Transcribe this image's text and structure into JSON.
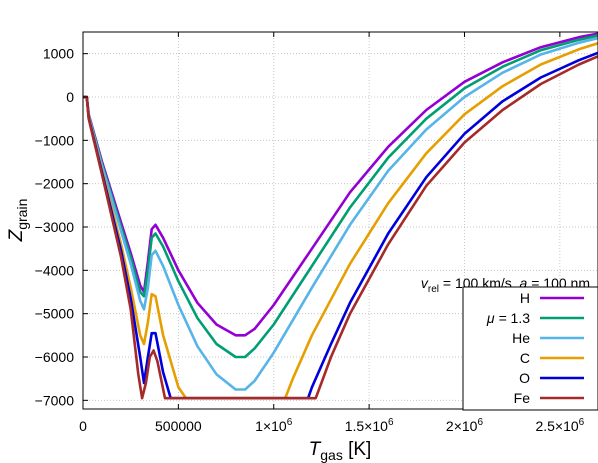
{
  "chart_data": {
    "type": "line",
    "title": "",
    "xlabel": {
      "main": "T",
      "sub": "gas",
      "unit": " [K]"
    },
    "ylabel": {
      "main": "Z",
      "sub": "grain"
    },
    "xlim": [
      0,
      2700000
    ],
    "ylim": [
      -7200,
      1500
    ],
    "grid": true,
    "x_ticks": [
      {
        "value": 0,
        "label": "0"
      },
      {
        "value": 500000,
        "label": "500000"
      },
      {
        "value": 1000000,
        "label": "1×10",
        "exp": "6"
      },
      {
        "value": 1500000,
        "label": "1.5×10",
        "exp": "6"
      },
      {
        "value": 2000000,
        "label": "2×10",
        "exp": "6"
      },
      {
        "value": 2500000,
        "label": "2.5×10",
        "exp": "6"
      }
    ],
    "y_ticks": [
      {
        "value": 1000,
        "label": "1000"
      },
      {
        "value": 0,
        "label": "0"
      },
      {
        "value": -1000,
        "label": "−1000"
      },
      {
        "value": -2000,
        "label": "−2000"
      },
      {
        "value": -3000,
        "label": "−3000"
      },
      {
        "value": -4000,
        "label": "−4000"
      },
      {
        "value": -5000,
        "label": "−5000"
      },
      {
        "value": -6000,
        "label": "−6000"
      },
      {
        "value": -7000,
        "label": "−7000"
      }
    ],
    "annotation": {
      "v": "v",
      "v_sub": "rel",
      "rest": " = 100 km/s, ",
      "a": "a",
      "a_rest": " = 100 nm"
    },
    "legend_position": "bottom-right",
    "series": [
      {
        "name": "H",
        "mu_prefix": "",
        "color": "#9400d3",
        "points": [
          [
            0,
            0
          ],
          [
            20000,
            0
          ],
          [
            30000,
            -400
          ],
          [
            100000,
            -1500
          ],
          [
            200000,
            -2900
          ],
          [
            250000,
            -3600
          ],
          [
            300000,
            -4350
          ],
          [
            320000,
            -4500
          ],
          [
            340000,
            -3800
          ],
          [
            360000,
            -3050
          ],
          [
            380000,
            -2950
          ],
          [
            420000,
            -3250
          ],
          [
            500000,
            -4000
          ],
          [
            600000,
            -4750
          ],
          [
            700000,
            -5250
          ],
          [
            800000,
            -5500
          ],
          [
            850000,
            -5500
          ],
          [
            900000,
            -5350
          ],
          [
            1000000,
            -4800
          ],
          [
            1200000,
            -3500
          ],
          [
            1400000,
            -2200
          ],
          [
            1600000,
            -1150
          ],
          [
            1800000,
            -300
          ],
          [
            2000000,
            350
          ],
          [
            2200000,
            800
          ],
          [
            2400000,
            1150
          ],
          [
            2600000,
            1380
          ],
          [
            2700000,
            1460
          ]
        ]
      },
      {
        "name": "1.3",
        "mu_prefix": "μ",
        "color": "#009e73",
        "points": [
          [
            0,
            0
          ],
          [
            20000,
            0
          ],
          [
            30000,
            -420
          ],
          [
            100000,
            -1550
          ],
          [
            200000,
            -3000
          ],
          [
            250000,
            -3700
          ],
          [
            300000,
            -4500
          ],
          [
            320000,
            -4600
          ],
          [
            340000,
            -4000
          ],
          [
            360000,
            -3250
          ],
          [
            380000,
            -3150
          ],
          [
            420000,
            -3450
          ],
          [
            500000,
            -4250
          ],
          [
            600000,
            -5100
          ],
          [
            700000,
            -5700
          ],
          [
            800000,
            -6000
          ],
          [
            850000,
            -6000
          ],
          [
            900000,
            -5800
          ],
          [
            1000000,
            -5250
          ],
          [
            1200000,
            -3900
          ],
          [
            1400000,
            -2550
          ],
          [
            1600000,
            -1400
          ],
          [
            1800000,
            -500
          ],
          [
            2000000,
            200
          ],
          [
            2200000,
            700
          ],
          [
            2400000,
            1080
          ],
          [
            2600000,
            1320
          ],
          [
            2700000,
            1420
          ]
        ]
      },
      {
        "name": "He",
        "mu_prefix": "",
        "color": "#56b4e9",
        "points": [
          [
            0,
            0
          ],
          [
            20000,
            0
          ],
          [
            30000,
            -440
          ],
          [
            100000,
            -1600
          ],
          [
            200000,
            -3100
          ],
          [
            250000,
            -3850
          ],
          [
            300000,
            -4700
          ],
          [
            320000,
            -4900
          ],
          [
            340000,
            -4400
          ],
          [
            360000,
            -3650
          ],
          [
            380000,
            -3550
          ],
          [
            420000,
            -3900
          ],
          [
            500000,
            -4800
          ],
          [
            600000,
            -5750
          ],
          [
            700000,
            -6400
          ],
          [
            800000,
            -6750
          ],
          [
            850000,
            -6750
          ],
          [
            900000,
            -6550
          ],
          [
            1000000,
            -5900
          ],
          [
            1200000,
            -4400
          ],
          [
            1400000,
            -2950
          ],
          [
            1600000,
            -1700
          ],
          [
            1800000,
            -750
          ],
          [
            2000000,
            0
          ],
          [
            2200000,
            560
          ],
          [
            2400000,
            980
          ],
          [
            2600000,
            1250
          ],
          [
            2700000,
            1360
          ]
        ]
      },
      {
        "name": "C",
        "mu_prefix": "",
        "color": "#e69f00",
        "points": [
          [
            0,
            0
          ],
          [
            20000,
            0
          ],
          [
            30000,
            -460
          ],
          [
            100000,
            -1700
          ],
          [
            200000,
            -3400
          ],
          [
            250000,
            -4400
          ],
          [
            300000,
            -5500
          ],
          [
            320000,
            -5700
          ],
          [
            340000,
            -5200
          ],
          [
            360000,
            -4550
          ],
          [
            380000,
            -4600
          ],
          [
            420000,
            -5500
          ],
          [
            500000,
            -6700
          ],
          [
            540000,
            -6950
          ],
          [
            580000,
            -6950
          ],
          [
            1060000,
            -6950
          ],
          [
            1100000,
            -6500
          ],
          [
            1200000,
            -5500
          ],
          [
            1400000,
            -3850
          ],
          [
            1600000,
            -2450
          ],
          [
            1800000,
            -1300
          ],
          [
            2000000,
            -400
          ],
          [
            2200000,
            250
          ],
          [
            2400000,
            750
          ],
          [
            2600000,
            1100
          ],
          [
            2700000,
            1240
          ]
        ]
      },
      {
        "name": "O",
        "mu_prefix": "",
        "color": "#0000dd",
        "points": [
          [
            0,
            0
          ],
          [
            20000,
            0
          ],
          [
            30000,
            -480
          ],
          [
            100000,
            -1750
          ],
          [
            200000,
            -3550
          ],
          [
            250000,
            -4650
          ],
          [
            300000,
            -6000
          ],
          [
            320000,
            -6600
          ],
          [
            340000,
            -6000
          ],
          [
            360000,
            -5450
          ],
          [
            380000,
            -5450
          ],
          [
            420000,
            -6350
          ],
          [
            460000,
            -6950
          ],
          [
            500000,
            -6950
          ],
          [
            1180000,
            -6950
          ],
          [
            1200000,
            -6700
          ],
          [
            1300000,
            -5700
          ],
          [
            1400000,
            -4750
          ],
          [
            1600000,
            -3150
          ],
          [
            1800000,
            -1850
          ],
          [
            2000000,
            -850
          ],
          [
            2200000,
            -100
          ],
          [
            2400000,
            450
          ],
          [
            2600000,
            850
          ],
          [
            2700000,
            1020
          ]
        ]
      },
      {
        "name": "Fe",
        "mu_prefix": "",
        "color": "#a52a2a",
        "points": [
          [
            0,
            0
          ],
          [
            20000,
            0
          ],
          [
            30000,
            -500
          ],
          [
            100000,
            -1800
          ],
          [
            200000,
            -3700
          ],
          [
            250000,
            -4900
          ],
          [
            290000,
            -6400
          ],
          [
            310000,
            -6950
          ],
          [
            330000,
            -6600
          ],
          [
            350000,
            -6000
          ],
          [
            370000,
            -5850
          ],
          [
            390000,
            -6100
          ],
          [
            430000,
            -6950
          ],
          [
            1220000,
            -6950
          ],
          [
            1250000,
            -6600
          ],
          [
            1300000,
            -6000
          ],
          [
            1400000,
            -5000
          ],
          [
            1600000,
            -3400
          ],
          [
            1800000,
            -2050
          ],
          [
            2000000,
            -1050
          ],
          [
            2200000,
            -300
          ],
          [
            2400000,
            300
          ],
          [
            2600000,
            750
          ],
          [
            2700000,
            940
          ]
        ]
      }
    ]
  }
}
